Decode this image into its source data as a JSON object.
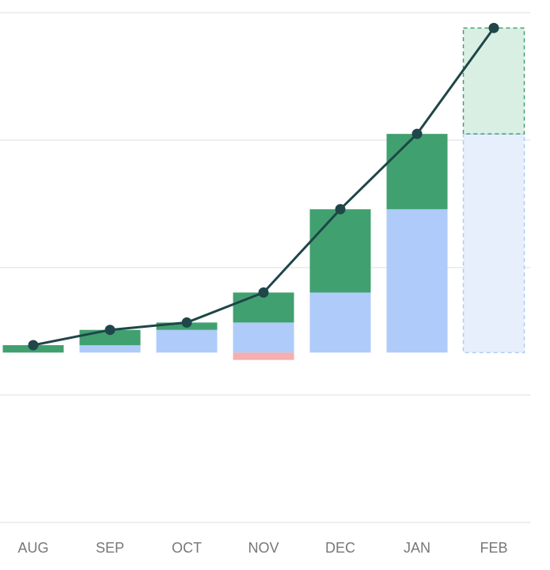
{
  "chart_data": {
    "type": "bar",
    "subtype": "stacked-bar-with-line",
    "categories": [
      "AUG",
      "SEP",
      "OCT",
      "NOV",
      "DEC",
      "JAN",
      "FEB"
    ],
    "ylim": [
      -300,
      600
    ],
    "grid": true,
    "series": [
      {
        "role": "base",
        "values": [
          0,
          13,
          40,
          53,
          106,
          253,
          386
        ],
        "color": "#aecbfa",
        "projected_indices": [
          6
        ]
      },
      {
        "role": "increase",
        "values": [
          13,
          27,
          13,
          53,
          147,
          133,
          187
        ],
        "color": "#41a06f",
        "projected_indices": [
          6
        ]
      },
      {
        "role": "decrease",
        "values": [
          0,
          0,
          0,
          -13,
          0,
          0,
          0
        ],
        "color": "#f6aeae"
      },
      {
        "role": "total-line",
        "values": [
          13,
          40,
          53,
          106,
          253,
          386,
          573
        ],
        "color": "#1f4648"
      }
    ],
    "projected_colors": {
      "base_fill": "#e7effd",
      "base_stroke": "#aecbfa",
      "increase_fill": "#daefe3",
      "increase_stroke": "#41a06f"
    },
    "gridline_color": "#dddddd"
  }
}
